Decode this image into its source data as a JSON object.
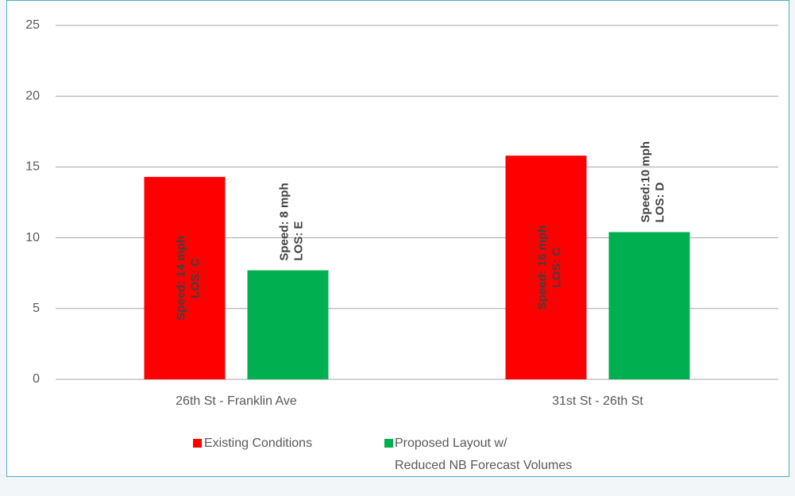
{
  "chart_data": {
    "type": "bar",
    "categories": [
      "26th St - Franklin Ave",
      "31st St - 26th St"
    ],
    "series": [
      {
        "name": "Existing Conditions",
        "color": "#ff0000",
        "values": [
          14.3,
          15.8
        ],
        "value_labels": [
          [
            "Speed: 14 mph",
            "LOS: C"
          ],
          [
            "Speed: 16 mph",
            "LOS: C"
          ]
        ]
      },
      {
        "name": "Proposed Layout w/\nReduced NB Forecast Volumes",
        "color": "#00b050",
        "values": [
          7.7,
          10.4
        ],
        "value_labels": [
          [
            "Speed: 8 mph",
            "LOS: E"
          ],
          [
            "Speed:10 mph",
            "LOS: D"
          ]
        ]
      }
    ],
    "ylim": [
      0,
      25
    ],
    "yticks": [
      0,
      5,
      10,
      15,
      20,
      25
    ],
    "grid": true
  }
}
